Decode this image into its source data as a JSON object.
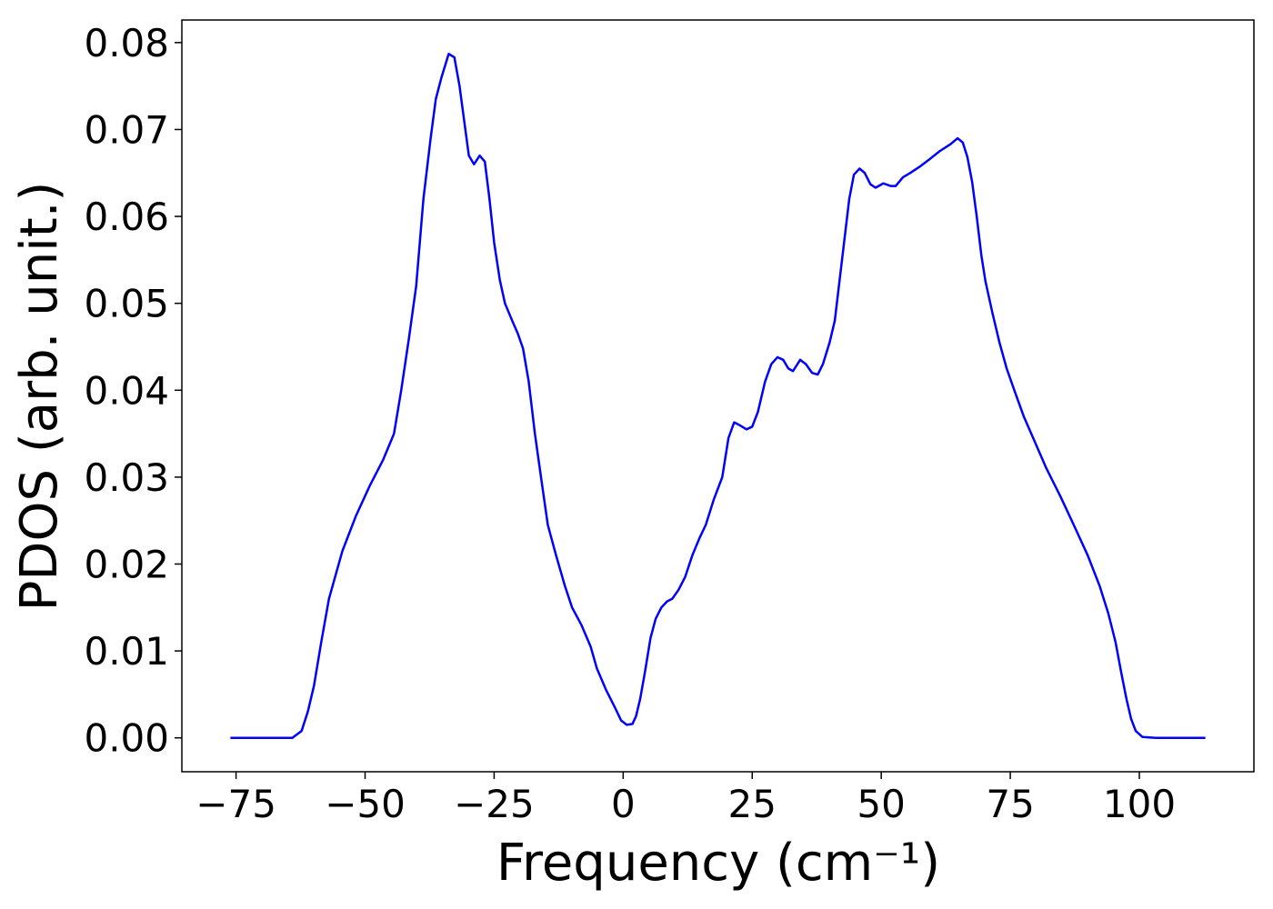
{
  "chart_data": {
    "type": "line",
    "xlabel": "Frequency (cm⁻¹)",
    "ylabel": "PDOS (arb. unit.)",
    "x": [
      -76.1,
      -64.1,
      -62.3,
      -61.1,
      -59.9,
      -58.5,
      -57.0,
      -54.4,
      -51.8,
      -49.1,
      -46.5,
      -44.4,
      -43.0,
      -41.5,
      -40.1,
      -38.7,
      -37.3,
      -36.3,
      -35.2,
      -33.8,
      -32.7,
      -31.7,
      -30.8,
      -29.9,
      -28.9,
      -27.8,
      -26.8,
      -25.9,
      -25.0,
      -23.9,
      -22.9,
      -21.5,
      -20.4,
      -19.4,
      -18.3,
      -17.1,
      -15.8,
      -14.6,
      -13.0,
      -11.3,
      -9.9,
      -8.1,
      -6.3,
      -5.1,
      -3.3,
      -1.6,
      -0.4,
      0.7,
      1.8,
      2.5,
      3.3,
      4.2,
      5.3,
      6.3,
      7.4,
      8.5,
      9.5,
      10.7,
      12.0,
      13.4,
      14.8,
      16.0,
      17.6,
      19.2,
      20.4,
      21.5,
      22.5,
      23.9,
      25.0,
      26.1,
      27.5,
      28.7,
      29.9,
      31.0,
      32.0,
      32.9,
      34.3,
      35.4,
      36.6,
      37.7,
      38.7,
      40.0,
      41.0,
      41.9,
      42.8,
      43.8,
      44.7,
      45.8,
      46.8,
      47.9,
      48.9,
      50.4,
      51.8,
      52.8,
      54.2,
      55.6,
      57.4,
      59.2,
      61.3,
      63.4,
      64.8,
      65.8,
      66.7,
      67.6,
      68.5,
      69.4,
      70.2,
      71.5,
      72.9,
      74.3,
      75.9,
      77.6,
      79.8,
      82.0,
      84.7,
      87.3,
      90.0,
      92.3,
      94.0,
      95.4,
      96.5,
      97.5,
      98.4,
      99.3,
      100.6,
      103.2,
      112.8
    ],
    "series": [
      {
        "name": "PDOS",
        "color": "#0000ff",
        "values": [
          0,
          0,
          0.0008,
          0.003,
          0.006,
          0.011,
          0.016,
          0.0215,
          0.0255,
          0.029,
          0.032,
          0.035,
          0.04,
          0.046,
          0.052,
          0.062,
          0.069,
          0.0735,
          0.076,
          0.0787,
          0.0783,
          0.075,
          0.071,
          0.067,
          0.066,
          0.067,
          0.0663,
          0.062,
          0.057,
          0.0527,
          0.05,
          0.048,
          0.0465,
          0.0448,
          0.041,
          0.035,
          0.0295,
          0.0245,
          0.021,
          0.0175,
          0.015,
          0.013,
          0.0105,
          0.008,
          0.0055,
          0.0035,
          0.002,
          0.0015,
          0.0016,
          0.0025,
          0.0045,
          0.0075,
          0.0115,
          0.0137,
          0.015,
          0.0157,
          0.016,
          0.017,
          0.0185,
          0.021,
          0.023,
          0.0245,
          0.0275,
          0.03,
          0.0345,
          0.0363,
          0.036,
          0.0355,
          0.0358,
          0.0375,
          0.041,
          0.043,
          0.0438,
          0.0435,
          0.0425,
          0.0422,
          0.0435,
          0.043,
          0.042,
          0.0418,
          0.043,
          0.0455,
          0.048,
          0.0525,
          0.057,
          0.062,
          0.0648,
          0.0655,
          0.065,
          0.0637,
          0.0633,
          0.0638,
          0.0635,
          0.0635,
          0.0645,
          0.065,
          0.0657,
          0.0665,
          0.0675,
          0.0683,
          0.069,
          0.0685,
          0.0668,
          0.064,
          0.06,
          0.0555,
          0.0525,
          0.049,
          0.0455,
          0.0425,
          0.0398,
          0.037,
          0.034,
          0.031,
          0.0278,
          0.0245,
          0.021,
          0.0175,
          0.0143,
          0.011,
          0.0075,
          0.0045,
          0.0022,
          0.0008,
          0.0001,
          0,
          0
        ]
      }
    ],
    "xlim": [
      -85.5,
      122.2
    ],
    "xticks": [
      {
        "value": -75,
        "label": "−75"
      },
      {
        "value": -50,
        "label": "−50"
      },
      {
        "value": -25,
        "label": "−25"
      },
      0,
      25,
      50,
      75,
      100
    ],
    "ylim": [
      -0.0039,
      0.0826
    ],
    "yticks": [
      {
        "value": 0,
        "label": "0.00"
      },
      0.01,
      0.02,
      0.03,
      0.04,
      0.05,
      0.06,
      0.07,
      0.08
    ]
  }
}
